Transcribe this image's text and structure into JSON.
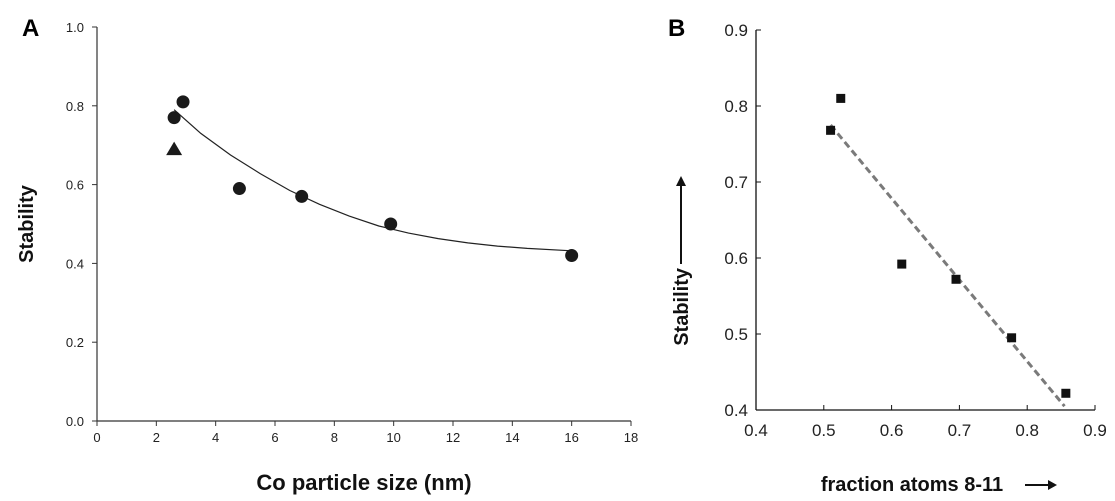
{
  "chart_data": [
    {
      "panel": "A",
      "type": "scatter",
      "xlabel": "Co particle size (nm)",
      "ylabel": "Stability",
      "xlim": [
        0,
        18
      ],
      "ylim": [
        0.0,
        1.0
      ],
      "xticks": [
        "0",
        "2",
        "4",
        "6",
        "8",
        "10",
        "12",
        "14",
        "16",
        "18"
      ],
      "yticks": [
        "0.0",
        "0.2",
        "0.4",
        "0.6",
        "0.8",
        "1.0"
      ],
      "grid": false,
      "series": [
        {
          "marker": "circle",
          "x": [
            2.6,
            2.9,
            4.8,
            6.9,
            9.9,
            16.0
          ],
          "y": [
            0.77,
            0.81,
            0.59,
            0.57,
            0.5,
            0.42
          ]
        },
        {
          "marker": "triangle",
          "x": [
            2.6
          ],
          "y": [
            0.69
          ]
        }
      ],
      "fit": {
        "style": "solid",
        "x": [
          2.6,
          3.5,
          4.5,
          5.5,
          6.5,
          7.5,
          8.5,
          9.5,
          10.5,
          11.5,
          12.5,
          13.5,
          14.5,
          16.0
        ],
        "y": [
          0.79,
          0.73,
          0.675,
          0.628,
          0.585,
          0.55,
          0.52,
          0.495,
          0.477,
          0.463,
          0.452,
          0.444,
          0.438,
          0.432
        ]
      },
      "color": "#1a1a1a"
    },
    {
      "panel": "B",
      "type": "scatter",
      "xlabel": "fraction atoms 8-11",
      "ylabel": "Stability",
      "xlim": [
        0.4,
        0.9
      ],
      "ylim": [
        0.4,
        0.9
      ],
      "xticks": [
        "0.4",
        "0.5",
        "0.6",
        "0.7",
        "0.8",
        "0.9"
      ],
      "yticks": [
        "0.4",
        "0.5",
        "0.6",
        "0.7",
        "0.8",
        "0.9"
      ],
      "grid": false,
      "series": [
        {
          "marker": "square",
          "x": [
            0.51,
            0.525,
            0.615,
            0.695,
            0.777,
            0.857
          ],
          "y": [
            0.768,
            0.81,
            0.592,
            0.572,
            0.495,
            0.422
          ]
        }
      ],
      "fit": {
        "style": "dashed",
        "x": [
          0.51,
          0.855
        ],
        "y": [
          0.775,
          0.405
        ]
      },
      "color": "#111111",
      "fit_color": "#7a7a7a"
    }
  ]
}
